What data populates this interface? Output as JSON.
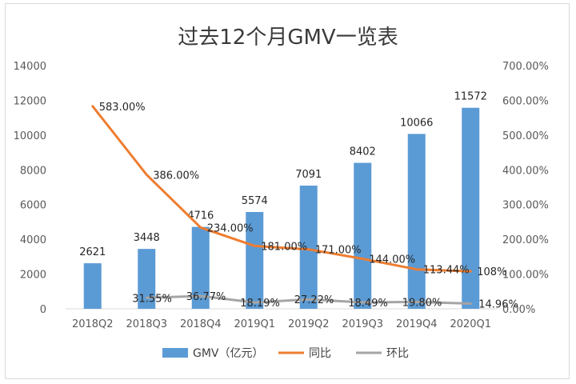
{
  "chart_data": {
    "type": "bar+line",
    "title": "过去12个月GMV一览表",
    "categories": [
      "2018Q2",
      "2018Q3",
      "2018Q4",
      "2019Q1",
      "2019Q2",
      "2019Q3",
      "2019Q4",
      "2020Q1"
    ],
    "series": [
      {
        "name": "GMV（亿元）",
        "type": "bar",
        "axis": "left",
        "color": "#5b9bd5",
        "values": [
          2621,
          3448,
          4716,
          5574,
          7091,
          8402,
          10066,
          11572
        ],
        "labels": [
          "2621",
          "3448",
          "4716",
          "5574",
          "7091",
          "8402",
          "10066",
          "11572"
        ]
      },
      {
        "name": "同比",
        "type": "line",
        "axis": "right",
        "color": "#ed7d31",
        "values": [
          583.0,
          386.0,
          234.0,
          181.0,
          171.0,
          144.0,
          113.44,
          108
        ],
        "labels": [
          "583.00%",
          "386.00%",
          "234.00%",
          "181.00%",
          "171.00%",
          "144.00%",
          "113.44%",
          "108%"
        ]
      },
      {
        "name": "环比",
        "type": "line",
        "axis": "right",
        "color": "#a5a5a5",
        "values": [
          null,
          31.55,
          36.77,
          18.19,
          27.22,
          18.49,
          19.8,
          14.96
        ],
        "labels": [
          "",
          "31.55%",
          "36.77%",
          "18.19%",
          "27.22%",
          "18.49%",
          "19.80%",
          "14.96%"
        ]
      }
    ],
    "yleft": {
      "min": 0,
      "max": 14000,
      "ticks": [
        "0",
        "2000",
        "4000",
        "6000",
        "8000",
        "10000",
        "12000",
        "14000"
      ]
    },
    "yright": {
      "min": 0,
      "max": 700,
      "ticks": [
        "0.00%",
        "100.00%",
        "200.00%",
        "300.00%",
        "400.00%",
        "500.00%",
        "600.00%",
        "700.00%"
      ]
    },
    "grid": false,
    "legend_position": "bottom"
  }
}
